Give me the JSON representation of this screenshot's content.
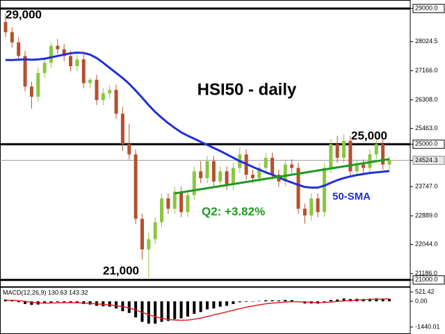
{
  "chart_data": {
    "type": "candlestick",
    "title": "HSI50 - daily",
    "categories": [
      null,
      null,
      null,
      null,
      null,
      null,
      null,
      null,
      null,
      null,
      null,
      null,
      null,
      null,
      null,
      null,
      null,
      null,
      null,
      null,
      null,
      null,
      null,
      null,
      null,
      null,
      null,
      null,
      null,
      null,
      null,
      null,
      null,
      null,
      null,
      null,
      null,
      null,
      null,
      null,
      null,
      null,
      null,
      null,
      null,
      null,
      null,
      null,
      null,
      null,
      null,
      null,
      null,
      null,
      null,
      null,
      null,
      null,
      null,
      null
    ],
    "open": [
      28600,
      28300,
      28000,
      27600,
      26700,
      26400,
      27100,
      27400,
      27900,
      27800,
      27600,
      27300,
      27500,
      26800,
      26900,
      26300,
      26500,
      26600,
      25900,
      25000,
      24700,
      22800,
      21900,
      22200,
      22700,
      23400,
      23100,
      23600,
      23000,
      23500,
      24200,
      24000,
      24500,
      23900,
      24200,
      23800,
      24300,
      24700,
      24100,
      24000,
      24300,
      24600,
      24100,
      23900,
      24400,
      24300,
      23100,
      22900,
      23400,
      23000,
      24300,
      25000,
      24600,
      25100,
      24200,
      24400,
      24300,
      24700,
      25000,
      24400
    ],
    "high": [
      28850,
      28450,
      28150,
      27750,
      26850,
      27250,
      27550,
      28000,
      28100,
      27950,
      27750,
      27650,
      27650,
      26950,
      27050,
      26650,
      26750,
      26750,
      26100,
      25600,
      24850,
      22950,
      22400,
      22850,
      23550,
      23550,
      23750,
      23750,
      23650,
      24350,
      24500,
      24650,
      24650,
      24350,
      24350,
      24450,
      24900,
      24850,
      24250,
      24450,
      24750,
      24750,
      24250,
      24550,
      24550,
      24450,
      23250,
      23550,
      23550,
      24450,
      25150,
      25250,
      25300,
      25250,
      24550,
      24550,
      24850,
      25150,
      25150,
      24650
    ],
    "low": [
      28150,
      27850,
      27450,
      26550,
      26050,
      26250,
      26950,
      27250,
      27650,
      27450,
      27150,
      27150,
      26650,
      26650,
      26150,
      26150,
      26350,
      25750,
      24800,
      24550,
      22650,
      21600,
      21050,
      22050,
      22550,
      22950,
      22950,
      22850,
      22850,
      23350,
      23850,
      23850,
      23750,
      23750,
      23650,
      23650,
      24150,
      23950,
      23850,
      23850,
      24150,
      23950,
      23750,
      23750,
      24150,
      22950,
      22650,
      22750,
      22850,
      22850,
      24150,
      24450,
      24450,
      24050,
      24050,
      24150,
      24150,
      24550,
      24250,
      24250
    ],
    "close": [
      28300,
      28000,
      27600,
      26700,
      26400,
      27100,
      27400,
      27900,
      27800,
      27600,
      27300,
      27500,
      26800,
      26900,
      26300,
      26500,
      26600,
      25900,
      25000,
      24700,
      22800,
      21900,
      22200,
      22700,
      23400,
      23100,
      23600,
      23000,
      23500,
      24200,
      24000,
      24500,
      23900,
      24200,
      23800,
      24300,
      24700,
      24100,
      24000,
      24300,
      24600,
      24100,
      23900,
      24400,
      24300,
      23100,
      22900,
      23400,
      23000,
      24300,
      25000,
      24600,
      25100,
      24200,
      24400,
      24300,
      24700,
      25000,
      24400,
      24524.3
    ],
    "up_color": "#8cc63f",
    "down_color": "#b5502f",
    "ylim": [
      20800,
      29250
    ],
    "yticks": [
      {
        "value": 29000,
        "label": "29000.0"
      },
      {
        "value": 28024.5,
        "label": "28024.5"
      },
      {
        "value": 27166,
        "label": "27166.0"
      },
      {
        "value": 26308,
        "label": "26308.0"
      },
      {
        "value": 25463,
        "label": "25463.0"
      },
      {
        "value": 25000,
        "label": "25000.0"
      },
      {
        "value": 24524.3,
        "label": "24524.3"
      },
      {
        "value": 23747,
        "label": "23747.0"
      },
      {
        "value": 22889,
        "label": "22889.0"
      },
      {
        "value": 22044,
        "label": "22044.0"
      },
      {
        "value": 21186,
        "label": "21186.0"
      },
      {
        "value": 21000,
        "label": "21000.0"
      }
    ],
    "levels": [
      {
        "value": 29000,
        "label": "29,000"
      },
      {
        "value": 25000,
        "label": "25,000"
      },
      {
        "value": 21000,
        "label": "21,000"
      }
    ],
    "sma": {
      "name": "50-SMA",
      "color": "#1f2fd6",
      "values": [
        27480,
        27480,
        27490,
        27500,
        27490,
        27500,
        27520,
        27560,
        27600,
        27640,
        27680,
        27700,
        27690,
        27640,
        27540,
        27400,
        27250,
        27100,
        26950,
        26780,
        26580,
        26370,
        26150,
        25950,
        25780,
        25620,
        25480,
        25350,
        25250,
        25160,
        25070,
        24980,
        24890,
        24800,
        24700,
        24600,
        24500,
        24420,
        24330,
        24250,
        24170,
        24100,
        24020,
        23940,
        23870,
        23800,
        23740,
        23720,
        23720,
        23780,
        23860,
        23940,
        24000,
        24050,
        24090,
        24120,
        24150,
        24170,
        24190,
        24210
      ]
    },
    "trendline": {
      "name": "Q2: +3.82%",
      "color": "#1e9a1e",
      "from": [
        26,
        23550
      ],
      "to": [
        59,
        24560
      ]
    },
    "indicator": {
      "title": "MACD(12,26,9) 130.63 143.32",
      "histogram": [
        100,
        50,
        -50,
        -150,
        -200,
        -180,
        -120,
        -60,
        -40,
        -50,
        -80,
        -90,
        -150,
        -180,
        -250,
        -280,
        -300,
        -400,
        -550,
        -650,
        -900,
        -1150,
        -1250,
        -1250,
        -1150,
        -1100,
        -1000,
        -950,
        -850,
        -700,
        -600,
        -450,
        -400,
        -300,
        -250,
        -150,
        -50,
        -30,
        -20,
        20,
        60,
        60,
        50,
        80,
        70,
        -50,
        -120,
        -120,
        -130,
        -40,
        80,
        100,
        160,
        130,
        140,
        130,
        150,
        170,
        140,
        130.63
      ],
      "signal": [
        50,
        60,
        40,
        0,
        -50,
        -90,
        -100,
        -95,
        -85,
        -75,
        -75,
        -80,
        -95,
        -115,
        -145,
        -175,
        -200,
        -240,
        -300,
        -370,
        -480,
        -620,
        -750,
        -860,
        -950,
        -1010,
        -1050,
        -1060,
        -1050,
        -1000,
        -940,
        -850,
        -760,
        -680,
        -590,
        -500,
        -410,
        -330,
        -260,
        -200,
        -140,
        -100,
        -70,
        -40,
        -20,
        -25,
        -40,
        -55,
        -70,
        -65,
        -40,
        -10,
        20,
        50,
        70,
        90,
        110,
        125,
        135,
        143.32
      ],
      "histogram_color": "#000000",
      "signal_color": "#e02020",
      "ylim": [
        -1830,
        820
      ],
      "yticks": [
        {
          "value": 521.42,
          "label": "521.42"
        },
        {
          "value": 0,
          "label": "0.00"
        },
        {
          "value": -1440.01,
          "label": "-1440.01"
        }
      ]
    }
  }
}
